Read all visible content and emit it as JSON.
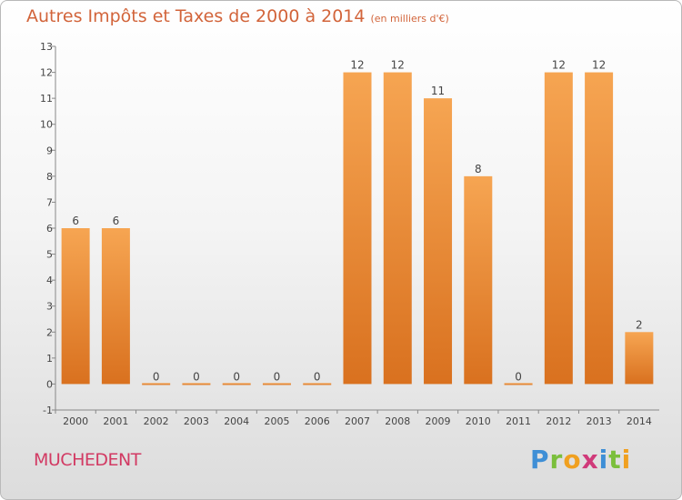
{
  "title": "Autres Impôts et Taxes de 2000 à 2014",
  "title_unit": "(en milliers d'€)",
  "location": "MUCHEDENT",
  "logo_text": "Proxiti",
  "colors": {
    "bar_top": "#f6a552",
    "bar_bottom": "#d9711f",
    "title": "#d2643a",
    "location": "#d23a63"
  },
  "chart_data": {
    "type": "bar",
    "title": "Autres Impôts et Taxes de 2000 à 2014",
    "subtitle": "(en milliers d'€)",
    "categories": [
      "2000",
      "2001",
      "2002",
      "2003",
      "2004",
      "2005",
      "2006",
      "2007",
      "2008",
      "2009",
      "2010",
      "2011",
      "2012",
      "2013",
      "2014"
    ],
    "values": [
      6,
      6,
      0,
      0,
      0,
      0,
      0,
      12,
      12,
      11,
      8,
      0,
      12,
      12,
      2
    ],
    "ylim": [
      -1,
      13
    ],
    "yticks": [
      -1,
      0,
      1,
      2,
      3,
      4,
      5,
      6,
      7,
      8,
      9,
      10,
      11,
      12,
      13
    ],
    "xlabel": "",
    "ylabel": "",
    "grid": false,
    "legend": "none"
  }
}
